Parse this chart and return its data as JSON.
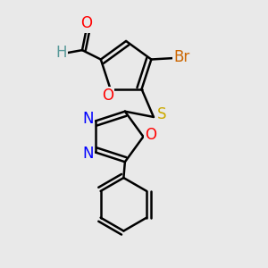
{
  "bg_color": "#e9e9e9",
  "atom_colors": {
    "C": "#000000",
    "H": "#5a9a9a",
    "O": "#ff0000",
    "N": "#0000ff",
    "S": "#ccaa00",
    "Br": "#cc6600"
  },
  "bond_color": "#000000",
  "bond_width": 1.8,
  "font_size": 12
}
